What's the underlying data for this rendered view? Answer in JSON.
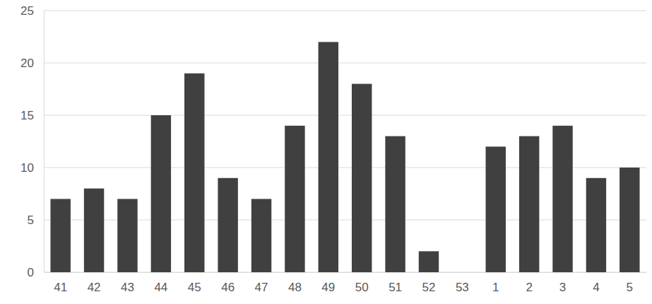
{
  "chart_data": {
    "type": "bar",
    "categories": [
      "41",
      "42",
      "43",
      "44",
      "45",
      "46",
      "47",
      "48",
      "49",
      "50",
      "51",
      "52",
      "53",
      "1",
      "2",
      "3",
      "4",
      "5"
    ],
    "values": [
      7,
      8,
      7,
      15,
      19,
      9,
      7,
      14,
      22,
      18,
      13,
      2,
      0,
      12,
      13,
      14,
      9,
      10
    ],
    "color": "#404040",
    "ylim": [
      0,
      25
    ],
    "yticks": [
      0,
      5,
      10,
      15,
      20,
      25
    ],
    "grid": true
  }
}
